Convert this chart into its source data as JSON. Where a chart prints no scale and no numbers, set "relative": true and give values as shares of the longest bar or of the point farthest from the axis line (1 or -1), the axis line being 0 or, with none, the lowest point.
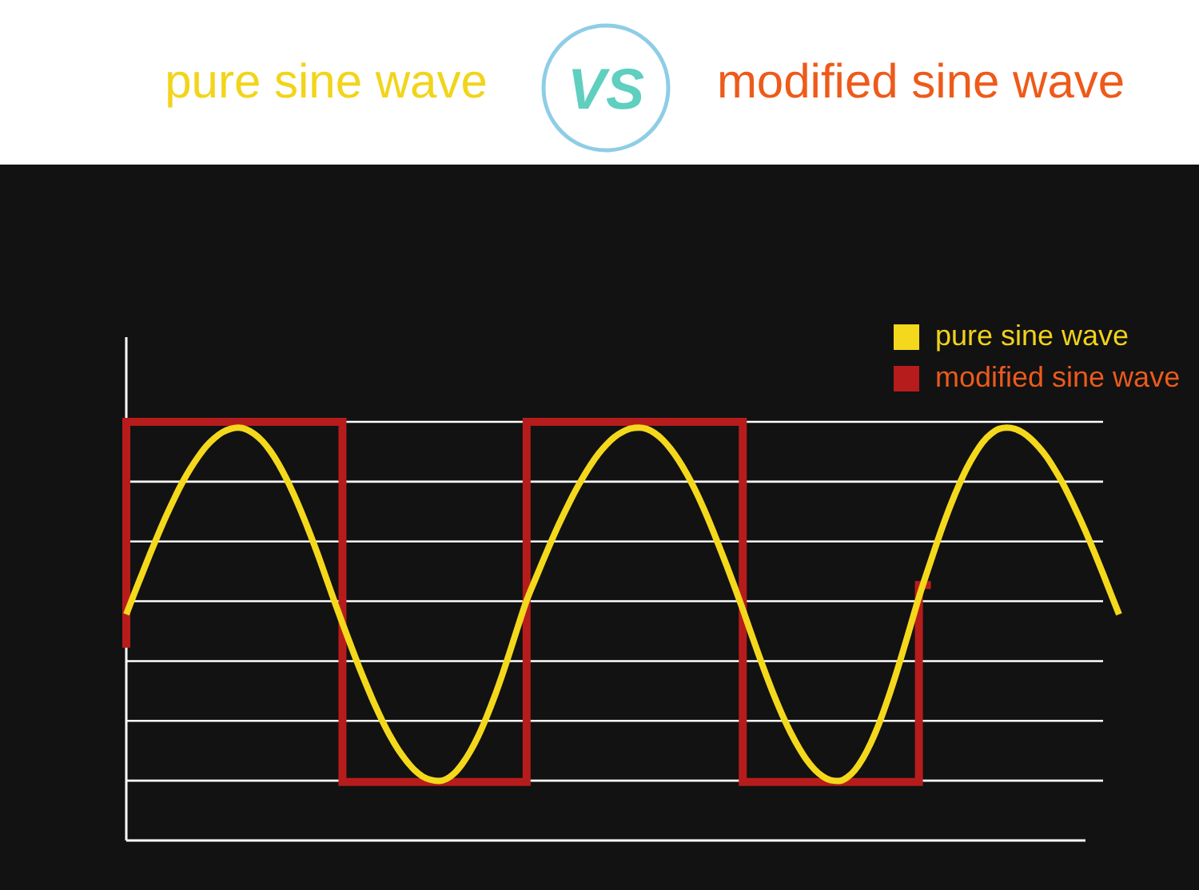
{
  "chart_data": {
    "type": "line",
    "relative": true,
    "grid": "y",
    "legend": "top right",
    "annotations": [
      "pure sine wave",
      "VS",
      "modified sine wave"
    ],
    "categories": [
      null,
      null,
      null,
      null,
      null,
      null,
      null,
      null,
      null,
      null,
      null,
      null,
      null,
      null,
      null,
      null,
      null,
      null,
      null,
      null,
      null,
      null,
      null,
      null,
      null,
      null,
      null,
      null,
      null,
      null,
      null,
      null,
      null,
      null,
      null,
      null,
      null,
      null,
      null,
      null,
      null,
      null,
      null,
      null,
      null,
      null,
      null,
      null,
      null,
      null,
      null,
      null,
      null,
      null,
      null,
      null,
      null,
      null,
      null,
      null,
      null,
      null,
      null,
      null,
      null,
      null,
      null,
      null,
      null,
      null,
      null,
      null,
      null,
      null,
      null,
      null,
      null,
      null,
      null,
      null,
      null,
      null,
      null,
      null,
      null,
      null,
      null,
      null,
      null,
      null,
      null,
      null,
      null,
      null,
      null,
      null,
      null,
      null,
      null,
      null,
      null,
      null,
      null,
      null,
      null,
      null,
      null,
      null,
      null,
      null,
      null,
      null,
      null,
      null,
      null,
      null,
      null,
      null,
      null,
      null,
      null,
      null,
      null,
      null,
      null
    ],
    "series": [
      {
        "name": "pure sine wave",
        "color": "#f4d81c",
        "values": [
          0.54,
          0.59,
          0.638,
          0.686,
          0.732,
          0.776,
          0.817,
          0.855,
          0.888,
          0.917,
          0.942,
          0.961,
          0.975,
          0.983,
          0.986,
          0.982,
          0.971,
          0.954,
          0.93,
          0.9,
          0.864,
          0.823,
          0.778,
          0.73,
          0.679,
          0.625,
          0.571,
          0.519,
          0.468,
          0.418,
          0.371,
          0.326,
          0.285,
          0.248,
          0.216,
          0.19,
          0.168,
          0.153,
          0.145,
          0.142,
          0.147,
          0.161,
          0.184,
          0.214,
          0.251,
          0.295,
          0.344,
          0.398,
          0.456,
          0.516,
          0.573,
          0.62,
          0.666,
          0.711,
          0.754,
          0.794,
          0.832,
          0.866,
          0.897,
          0.924,
          0.946,
          0.964,
          0.976,
          0.984,
          0.986,
          0.983,
          0.973,
          0.957,
          0.935,
          0.908,
          0.876,
          0.839,
          0.798,
          0.753,
          0.705,
          0.656,
          0.605,
          0.552,
          0.497,
          0.443,
          0.391,
          0.342,
          0.297,
          0.257,
          0.222,
          0.192,
          0.169,
          0.153,
          0.144,
          0.142,
          0.15,
          0.168,
          0.196,
          0.233,
          0.278,
          0.331,
          0.389,
          0.451,
          0.516,
          0.581,
          0.64,
          0.697,
          0.752,
          0.803,
          0.849,
          0.89,
          0.924,
          0.952,
          0.971,
          0.983,
          0.986,
          0.983,
          0.974,
          0.959,
          0.939,
          0.915,
          0.885,
          0.852,
          0.814,
          0.773,
          0.73,
          0.684,
          0.637,
          0.588,
          0.54
        ]
      },
      {
        "name": "modified sine wave",
        "type": "step",
        "color": "#b71c1c",
        "values": [
          0.47,
          1,
          1,
          1,
          1,
          1,
          1,
          1,
          1,
          1,
          1,
          1,
          1,
          1,
          1,
          1,
          1,
          1,
          1,
          1,
          1,
          1,
          1,
          1,
          1,
          1,
          1,
          1,
          0.14,
          0.14,
          0.14,
          0.14,
          0.14,
          0.14,
          0.14,
          0.14,
          0.14,
          0.14,
          0.14,
          0.14,
          0.14,
          0.14,
          0.14,
          0.14,
          0.14,
          0.14,
          0.14,
          0.14,
          0.14,
          0.14,
          0.14,
          1,
          1,
          1,
          1,
          1,
          1,
          1,
          1,
          1,
          1,
          1,
          1,
          1,
          1,
          1,
          1,
          1,
          1,
          1,
          1,
          1,
          1,
          1,
          1,
          1,
          1,
          1,
          0.14,
          0.14,
          0.14,
          0.14,
          0.14,
          0.14,
          0.14,
          0.14,
          0.14,
          0.14,
          0.14,
          0.14,
          0.14,
          0.14,
          0.14,
          0.14,
          0.14,
          0.14,
          0.14,
          0.14,
          0.14,
          0.14,
          0.61,
          null,
          null,
          null,
          null,
          null,
          null,
          null,
          null,
          null,
          null,
          null,
          null,
          null,
          null,
          null,
          null,
          null,
          null,
          null,
          null,
          null,
          null,
          null,
          null
        ]
      }
    ]
  }
}
